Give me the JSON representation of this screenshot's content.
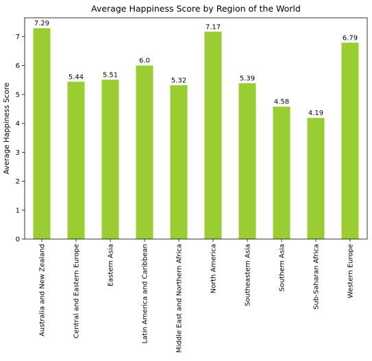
{
  "chart_data": {
    "type": "bar",
    "title": "Average Happiness Score by Region of the World",
    "xlabel": "",
    "ylabel": "Average Happiness Score",
    "categories": [
      "Australia and New Zealand",
      "Central and Eastern Europe",
      "Eastern Asia",
      "Latin America and Caribbean",
      "Middle East and Northern Africa",
      "North America",
      "Southeastern Asia",
      "Southern Asia",
      "Sub-Saharan Africa",
      "Western Europe"
    ],
    "values": [
      7.29,
      5.44,
      5.51,
      6.0,
      5.32,
      7.17,
      5.39,
      4.58,
      4.19,
      6.79
    ],
    "data_labels": [
      "7.29",
      "5.44",
      "5.51",
      "6.0",
      "5.32",
      "7.17",
      "5.39",
      "4.58",
      "4.19",
      "6.79"
    ],
    "ylim": [
      0,
      7.65
    ],
    "yticks": [
      0,
      1,
      2,
      3,
      4,
      5,
      6,
      7
    ],
    "bar_color": "#9acd32",
    "grid": false,
    "legend": "none"
  }
}
